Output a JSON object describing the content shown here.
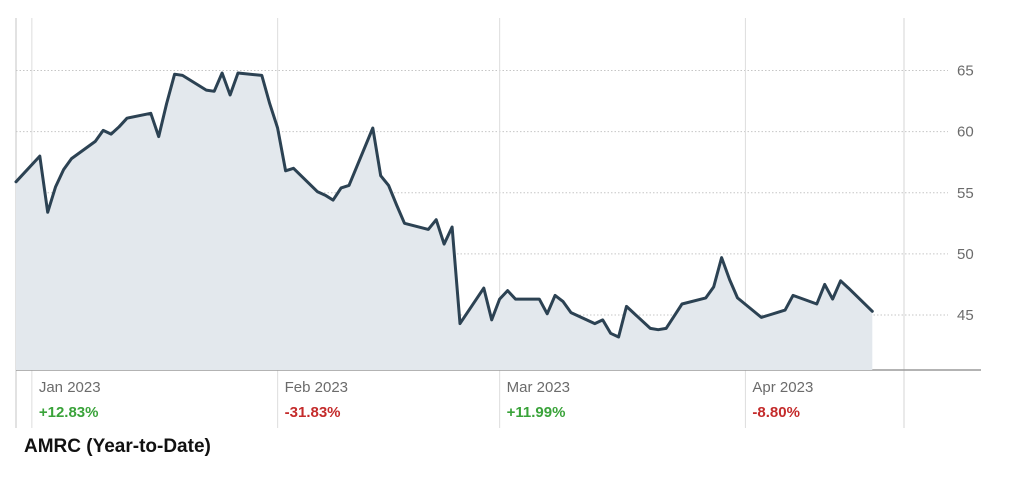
{
  "chart_data": {
    "type": "area",
    "title": "AMRC (Year-to-Date)",
    "xlabel": "",
    "ylabel": "",
    "yticks": [
      65,
      60,
      55,
      50,
      45
    ],
    "ylim": [
      40.5,
      69.3
    ],
    "grid": true,
    "x_range": [
      "2022-12-30",
      "2023-04-21"
    ],
    "periods": [
      {
        "label": "Jan 2023",
        "change": "+12.83%",
        "date": "2023-01-01"
      },
      {
        "label": "Feb 2023",
        "change": "-31.83%",
        "date": "2023-02-01"
      },
      {
        "label": "Mar 2023",
        "change": "+11.99%",
        "date": "2023-03-01"
      },
      {
        "label": "Apr 2023",
        "change": "-8.80%",
        "date": "2023-04-01"
      }
    ],
    "series": [
      {
        "values": [
          [
            "2022-12-30",
            55.9
          ],
          [
            "2023-01-02",
            58.0
          ],
          [
            "2023-01-03",
            53.4
          ],
          [
            "2023-01-04",
            55.5
          ],
          [
            "2023-01-05",
            56.9
          ],
          [
            "2023-01-06",
            57.8
          ],
          [
            "2023-01-09",
            59.2
          ],
          [
            "2023-01-10",
            60.1
          ],
          [
            "2023-01-11",
            59.8
          ],
          [
            "2023-01-12",
            60.4
          ],
          [
            "2023-01-13",
            61.1
          ],
          [
            "2023-01-16",
            61.5
          ],
          [
            "2023-01-17",
            59.6
          ],
          [
            "2023-01-18",
            62.3
          ],
          [
            "2023-01-19",
            64.7
          ],
          [
            "2023-01-20",
            64.6
          ],
          [
            "2023-01-23",
            63.4
          ],
          [
            "2023-01-24",
            63.3
          ],
          [
            "2023-01-25",
            64.8
          ],
          [
            "2023-01-26",
            63.0
          ],
          [
            "2023-01-27",
            64.8
          ],
          [
            "2023-01-30",
            64.6
          ],
          [
            "2023-01-31",
            62.3
          ],
          [
            "2023-02-01",
            60.3
          ],
          [
            "2023-02-02",
            56.8
          ],
          [
            "2023-02-03",
            57.0
          ],
          [
            "2023-02-06",
            55.1
          ],
          [
            "2023-02-07",
            54.8
          ],
          [
            "2023-02-08",
            54.4
          ],
          [
            "2023-02-09",
            55.4
          ],
          [
            "2023-02-10",
            55.6
          ],
          [
            "2023-02-13",
            60.3
          ],
          [
            "2023-02-14",
            56.4
          ],
          [
            "2023-02-15",
            55.6
          ],
          [
            "2023-02-16",
            54.0
          ],
          [
            "2023-02-17",
            52.5
          ],
          [
            "2023-02-20",
            52.0
          ],
          [
            "2023-02-21",
            52.8
          ],
          [
            "2023-02-22",
            50.8
          ],
          [
            "2023-02-23",
            52.2
          ],
          [
            "2023-02-24",
            44.3
          ],
          [
            "2023-02-27",
            47.2
          ],
          [
            "2023-02-28",
            44.6
          ],
          [
            "2023-03-01",
            46.3
          ],
          [
            "2023-03-02",
            47.0
          ],
          [
            "2023-03-03",
            46.3
          ],
          [
            "2023-03-06",
            46.3
          ],
          [
            "2023-03-07",
            45.1
          ],
          [
            "2023-03-08",
            46.6
          ],
          [
            "2023-03-09",
            46.1
          ],
          [
            "2023-03-10",
            45.2
          ],
          [
            "2023-03-13",
            44.3
          ],
          [
            "2023-03-14",
            44.6
          ],
          [
            "2023-03-15",
            43.5
          ],
          [
            "2023-03-16",
            43.2
          ],
          [
            "2023-03-17",
            45.7
          ],
          [
            "2023-03-20",
            43.9
          ],
          [
            "2023-03-21",
            43.8
          ],
          [
            "2023-03-22",
            43.9
          ],
          [
            "2023-03-23",
            44.9
          ],
          [
            "2023-03-24",
            45.9
          ],
          [
            "2023-03-27",
            46.4
          ],
          [
            "2023-03-28",
            47.3
          ],
          [
            "2023-03-29",
            49.7
          ],
          [
            "2023-03-30",
            47.9
          ],
          [
            "2023-03-31",
            46.4
          ],
          [
            "2023-04-03",
            44.8
          ],
          [
            "2023-04-04",
            45.0
          ],
          [
            "2023-04-05",
            45.2
          ],
          [
            "2023-04-06",
            45.4
          ],
          [
            "2023-04-07",
            46.6
          ],
          [
            "2023-04-10",
            45.9
          ],
          [
            "2023-04-11",
            47.5
          ],
          [
            "2023-04-12",
            46.3
          ],
          [
            "2023-04-13",
            47.8
          ],
          [
            "2023-04-14",
            47.2
          ],
          [
            "2023-04-17",
            45.3
          ]
        ]
      }
    ],
    "colors": {
      "line": "#2c4253",
      "fill": "#e3e8ed",
      "positive": "#3aa33a",
      "negative": "#c42b2b",
      "grid": "#c6c6c6",
      "axis": "#9a9a9a"
    }
  }
}
